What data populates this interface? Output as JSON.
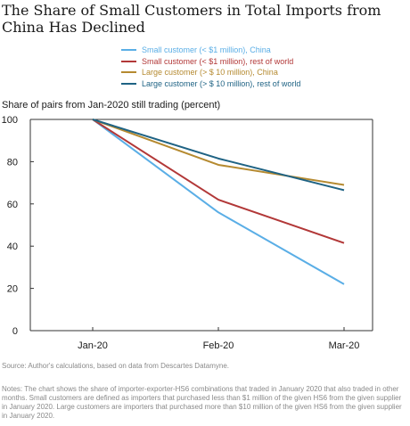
{
  "chart_data": {
    "type": "line",
    "title": "The Share of Small Customers in Total Imports from China Has Declined",
    "ylabel": "Share of pairs from Jan-2020 still trading (percent)",
    "xlabel": "",
    "categories": [
      "Jan-20",
      "Feb-20",
      "Mar-20"
    ],
    "ylim": [
      0,
      100
    ],
    "yticks": [
      0,
      20,
      40,
      60,
      80,
      100
    ],
    "grid": false,
    "legend": "top",
    "series": [
      {
        "name": "Small customer (< $1 million), China",
        "color": "#5aaee6",
        "values": [
          100,
          56,
          22
        ]
      },
      {
        "name": "Small customer (< $1 million), rest of world",
        "color": "#b23838",
        "values": [
          100,
          62,
          41.5
        ]
      },
      {
        "name": "Large customer (> $ 10 million), China",
        "color": "#b58a30",
        "values": [
          100,
          78.5,
          69
        ]
      },
      {
        "name": "Large customer (> $ 10 million), rest of world",
        "color": "#1f6384",
        "values": [
          100,
          81.5,
          66.5
        ]
      }
    ]
  },
  "footer": {
    "source": "Source: Author's calculations, based on data from Descartes Datamyne.",
    "notes": "Notes: The chart shows the share of importer-exporter-HS6 combinations that traded in January 2020 that also traded in other months. Small customers are defined as importers that purchased less than $1 million of the given HS6 from the given supplier in January 2020. Large customers are importers that purchased more than $10 million of the given HS6 from the given supplier in January 2020."
  }
}
